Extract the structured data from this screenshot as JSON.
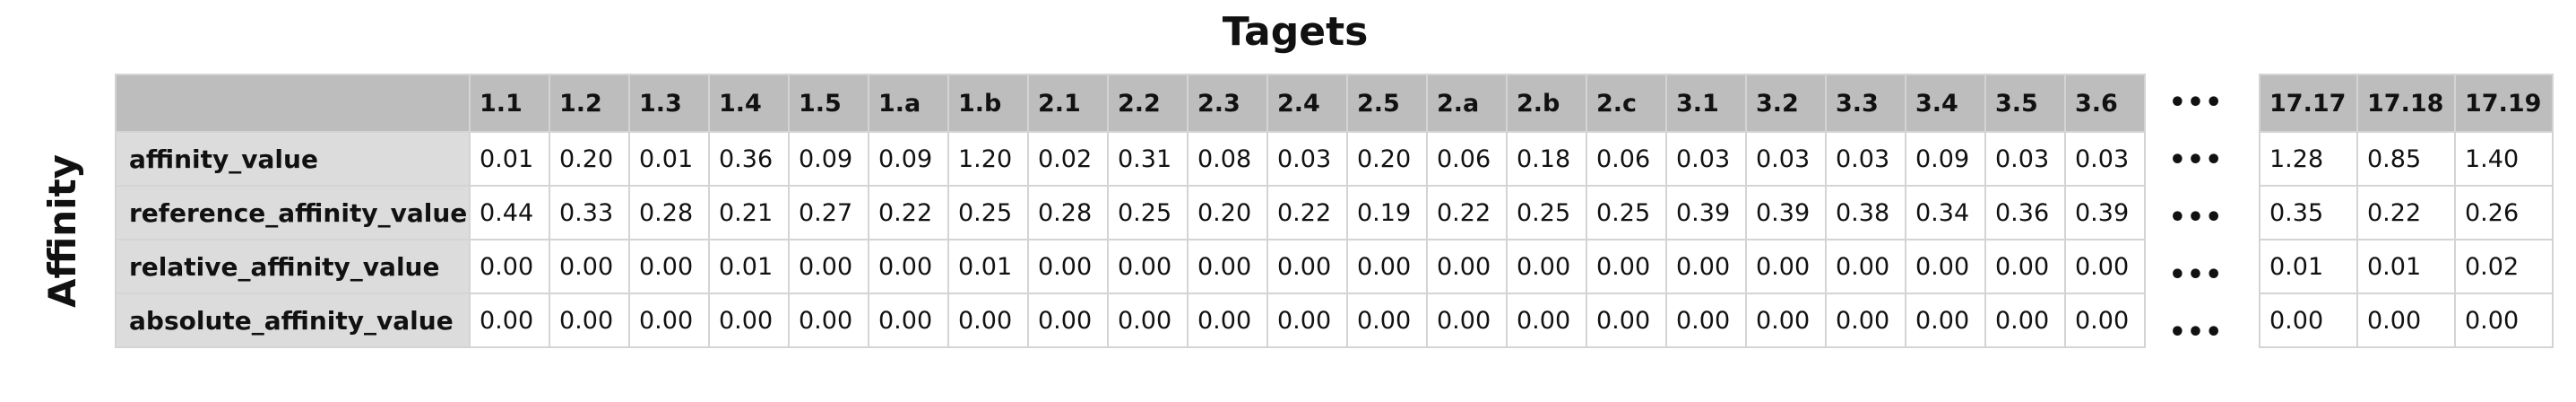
{
  "title": "Tagets",
  "side_label": "Affinity",
  "ellipsis": "•••",
  "columns_main": [
    "1.1",
    "1.2",
    "1.3",
    "1.4",
    "1.5",
    "1.a",
    "1.b",
    "2.1",
    "2.2",
    "2.3",
    "2.4",
    "2.5",
    "2.a",
    "2.b",
    "2.c",
    "3.1",
    "3.2",
    "3.3",
    "3.4",
    "3.5",
    "3.6"
  ],
  "columns_tail": [
    "17.17",
    "17.18",
    "17.19"
  ],
  "rows": [
    {
      "label": "affinity_value",
      "main": [
        "0.01",
        "0.20",
        "0.01",
        "0.36",
        "0.09",
        "0.09",
        "1.20",
        "0.02",
        "0.31",
        "0.08",
        "0.03",
        "0.20",
        "0.06",
        "0.18",
        "0.06",
        "0.03",
        "0.03",
        "0.03",
        "0.09",
        "0.03",
        "0.03"
      ],
      "tail": [
        "1.28",
        "0.85",
        "1.40"
      ]
    },
    {
      "label": "reference_affinity_value",
      "main": [
        "0.44",
        "0.33",
        "0.28",
        "0.21",
        "0.27",
        "0.22",
        "0.25",
        "0.28",
        "0.25",
        "0.20",
        "0.22",
        "0.19",
        "0.22",
        "0.25",
        "0.25",
        "0.39",
        "0.39",
        "0.38",
        "0.34",
        "0.36",
        "0.39"
      ],
      "tail": [
        "0.35",
        "0.22",
        "0.26"
      ]
    },
    {
      "label": "relative_affinity_value",
      "main": [
        "0.00",
        "0.00",
        "0.00",
        "0.01",
        "0.00",
        "0.00",
        "0.01",
        "0.00",
        "0.00",
        "0.00",
        "0.00",
        "0.00",
        "0.00",
        "0.00",
        "0.00",
        "0.00",
        "0.00",
        "0.00",
        "0.00",
        "0.00",
        "0.00"
      ],
      "tail": [
        "0.01",
        "0.01",
        "0.02"
      ]
    },
    {
      "label": "absolute_affinity_value",
      "main": [
        "0.00",
        "0.00",
        "0.00",
        "0.00",
        "0.00",
        "0.00",
        "0.00",
        "0.00",
        "0.00",
        "0.00",
        "0.00",
        "0.00",
        "0.00",
        "0.00",
        "0.00",
        "0.00",
        "0.00",
        "0.00",
        "0.00",
        "0.00",
        "0.00"
      ],
      "tail": [
        "0.00",
        "0.00",
        "0.00"
      ]
    }
  ]
}
